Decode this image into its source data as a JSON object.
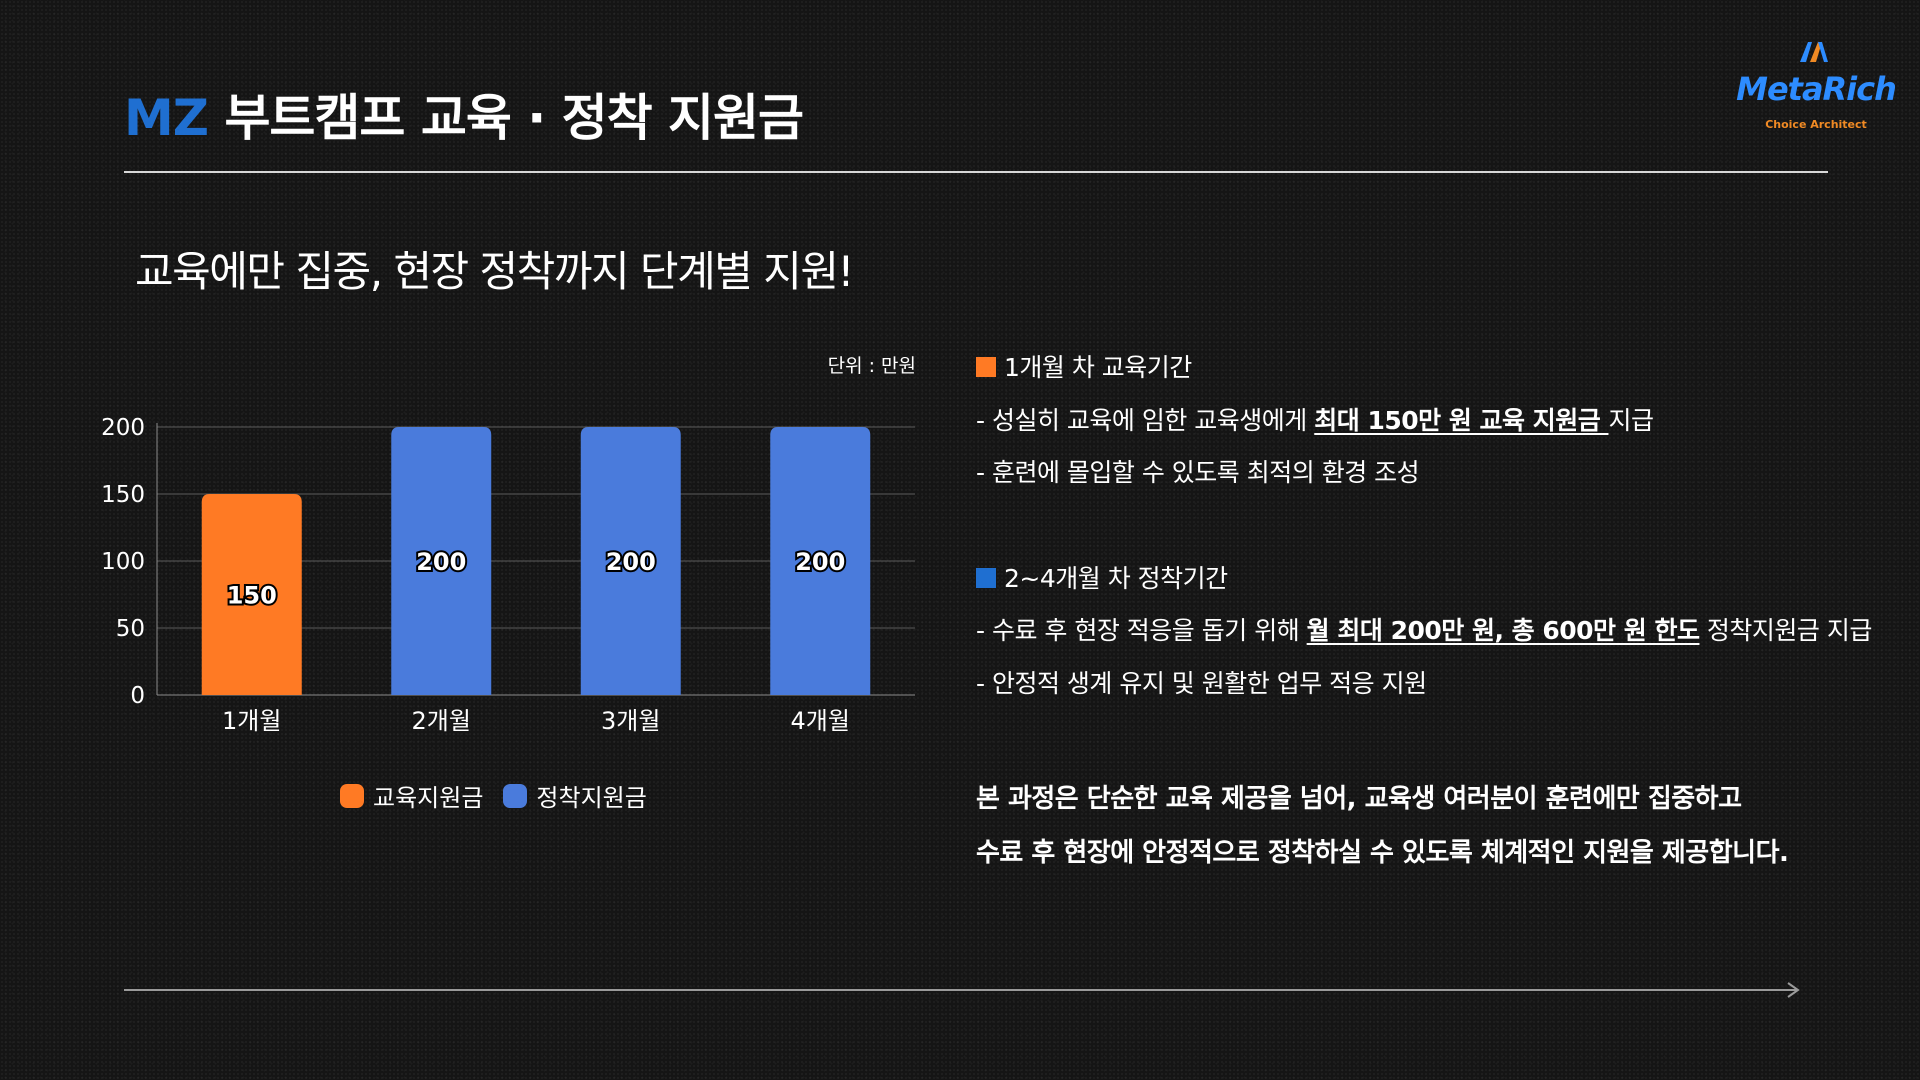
{
  "header": {
    "title_accent": "MZ",
    "title_rest": "부트캠프 교육 · 정착 지원금",
    "logo_text": "MetaRich",
    "logo_sub": "Choice Architect"
  },
  "subtitle": "교육에만 집중, 현장 정착까지 단계별 지원!",
  "unit_label": "단위 : 만원",
  "chart_data": {
    "type": "bar",
    "categories": [
      "1개월",
      "2개월",
      "3개월",
      "4개월"
    ],
    "values": [
      150,
      200,
      200,
      200
    ],
    "bar_series": [
      "교육지원금",
      "정착지원금",
      "정착지원금",
      "정착지원금"
    ],
    "legend": [
      {
        "name": "교육지원금",
        "color": "#ff7a24"
      },
      {
        "name": "정착지원금",
        "color": "#4a7bdc"
      }
    ],
    "ylim": [
      0,
      200
    ],
    "yticks": [
      0,
      50,
      100,
      150,
      200
    ],
    "grid": true,
    "legend_position": "bottom",
    "unit": "단위 : 만원"
  },
  "info": {
    "section1": {
      "heading": "1개월 차 교육기간",
      "color": "#ff7a24",
      "line1_pre": "- 성실히 교육에 임한 교육생에게 ",
      "line1_em": "최대 150만 원 교육 지원금 ",
      "line1_post": "지급",
      "line2": "- 훈련에 몰입할 수 있도록 최적의 환경 조성"
    },
    "section2": {
      "heading": "2~4개월 차 정착기간",
      "color": "#1f6fd1",
      "line1_pre": "- 수료 후 현장 적응을 돕기 위해 ",
      "line1_em": "월 최대 200만 원, 총 600만 원 한도",
      "line1_post": " 정착지원금 지급",
      "line2": "- 안정적 생계 유지 및 원활한 업무 적응 지원"
    },
    "closing_line1": "본 과정은 단순한 교육 제공을 넘어, 교육생 여러분이 훈련에만 집중하고",
    "closing_line2": "수료 후 현장에 안정적으로 정착하실 수 있도록 체계적인 지원을 제공합니다."
  }
}
